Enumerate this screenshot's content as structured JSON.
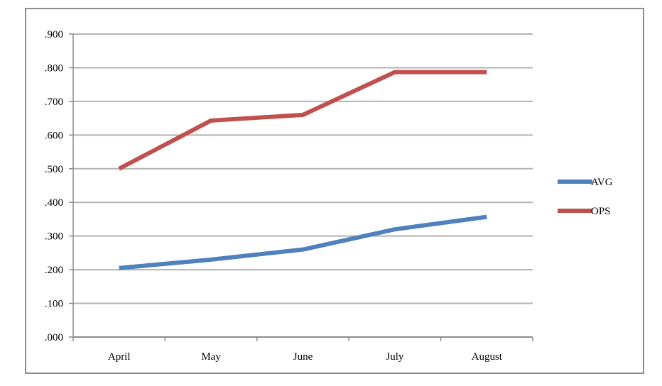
{
  "chart_data": {
    "type": "line",
    "categories": [
      "April",
      "May",
      "June",
      "July",
      "August"
    ],
    "series": [
      {
        "name": "AVG",
        "values": [
          0.205,
          0.23,
          0.26,
          0.32,
          0.357
        ],
        "color": "#4f81bd"
      },
      {
        "name": "OPS",
        "values": [
          0.5,
          0.643,
          0.66,
          0.787,
          0.787
        ],
        "color": "#c0504d"
      }
    ],
    "ylim": [
      0,
      0.9
    ],
    "yticks": [
      ".000",
      ".100",
      ".200",
      ".300",
      ".400",
      ".500",
      ".600",
      ".700",
      ".800",
      ".900"
    ],
    "title": "",
    "xlabel": "",
    "ylabel": "",
    "grid": true,
    "legend_position": "right"
  }
}
